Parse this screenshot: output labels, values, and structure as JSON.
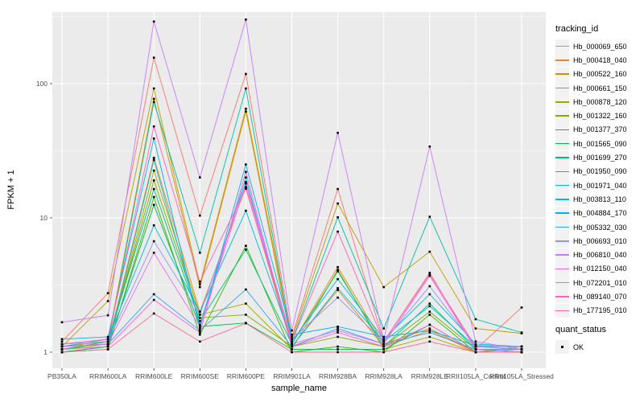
{
  "chart_data": {
    "type": "line",
    "xlabel": "sample_name",
    "ylabel": "FPKM + 1",
    "y_scale": "log10",
    "y_ticks": [
      1,
      10,
      100
    ],
    "y_minor_gridlines": [
      3.1623,
      31.623,
      316.23
    ],
    "ylim": [
      0.76,
      341
    ],
    "panel_bg": "#EBEBEB",
    "grid_color": "#FFFFFF",
    "point_shape": "square",
    "point_color": "#000000",
    "x_categories": [
      "PB350LA",
      "RRIM600LA",
      "RRIM600LE",
      "RRIM600SE",
      "RRIM600PE",
      "RRIM901LA",
      "RRIM928BA",
      "RRIM928LA",
      "RRIM928LE",
      "RRII105LA_Control",
      "RRII105LA_Stressed"
    ],
    "line_legend": {
      "title": "tracking_id"
    },
    "point_legend": {
      "title": "quant_status",
      "label": "OK"
    },
    "series": [
      {
        "name": "Hb_000069_650",
        "color": "#F8766D",
        "values": [
          1.2,
          2.75,
          156,
          10.4,
          118,
          1.3,
          16.4,
          1.2,
          3.9,
          1.05,
          2.15
        ]
      },
      {
        "name": "Hb_000418_040",
        "color": "#EA8331",
        "values": [
          1.05,
          1.15,
          28,
          2.0,
          17,
          1.1,
          2.9,
          1.1,
          1.45,
          1.0,
          1.05
        ]
      },
      {
        "name": "Hb_000522_160",
        "color": "#D89000",
        "values": [
          1.1,
          1.2,
          77,
          3.05,
          62,
          1.15,
          4.3,
          1.15,
          1.5,
          1.0,
          1.1
        ]
      },
      {
        "name": "Hb_000661_150",
        "color": "#C09B00",
        "values": [
          1.1,
          2.4,
          92,
          3.2,
          65,
          1.25,
          12.8,
          3.05,
          5.6,
          1.5,
          1.38
        ]
      },
      {
        "name": "Hb_000878_120",
        "color": "#A3A500",
        "values": [
          1.0,
          1.1,
          22.5,
          1.9,
          2.3,
          1.05,
          4.1,
          1.05,
          1.3,
          1.0,
          1.0
        ]
      },
      {
        "name": "Hb_001322_160",
        "color": "#7CAE00",
        "values": [
          1.05,
          1.15,
          19,
          1.8,
          1.9,
          1.1,
          1.3,
          1.1,
          2.0,
          1.05,
          1.0
        ]
      },
      {
        "name": "Hb_001377_370",
        "color": "#39B600",
        "values": [
          1.0,
          1.05,
          14.3,
          1.35,
          6.2,
          1.0,
          1.1,
          1.0,
          1.9,
          1.0,
          1.0
        ]
      },
      {
        "name": "Hb_001565_090",
        "color": "#00BB4E",
        "values": [
          1.0,
          1.1,
          12.5,
          1.55,
          1.65,
          1.05,
          1.05,
          1.05,
          1.6,
          1.0,
          1.0
        ]
      },
      {
        "name": "Hb_001699_270",
        "color": "#00BF7D",
        "values": [
          1.05,
          1.2,
          16.4,
          1.7,
          5.8,
          1.15,
          4.0,
          1.1,
          2.3,
          1.05,
          1.0
        ]
      },
      {
        "name": "Hb_001950_090",
        "color": "#00C1A3",
        "values": [
          1.1,
          1.15,
          73,
          5.5,
          92,
          1.2,
          10.1,
          1.5,
          10.2,
          1.76,
          1.4
        ]
      },
      {
        "name": "Hb_001971_040",
        "color": "#00BFC4",
        "values": [
          1.05,
          1.1,
          27,
          1.6,
          20,
          1.1,
          3.0,
          1.2,
          2.2,
          1.1,
          1.05
        ]
      },
      {
        "name": "Hb_003813_110",
        "color": "#00BAE0",
        "values": [
          1.1,
          1.25,
          8.8,
          2.0,
          11.3,
          1.2,
          3.5,
          1.25,
          2.7,
          1.15,
          1.1
        ]
      },
      {
        "name": "Hb_004884_170",
        "color": "#00B0F6",
        "values": [
          1.25,
          1.3,
          39,
          1.5,
          25,
          1.35,
          1.55,
          1.3,
          1.45,
          1.12,
          1.1
        ]
      },
      {
        "name": "Hb_005332_030",
        "color": "#35A2FF",
        "values": [
          1.1,
          1.15,
          2.7,
          1.45,
          2.93,
          1.1,
          1.5,
          1.15,
          1.4,
          1.05,
          1.05
        ]
      },
      {
        "name": "Hb_006693_010",
        "color": "#9590FF",
        "values": [
          1.15,
          1.2,
          6.7,
          1.9,
          18.5,
          1.25,
          2.55,
          1.2,
          3.1,
          1.1,
          1.05
        ]
      },
      {
        "name": "Hb_006810_040",
        "color": "#C77CFF",
        "values": [
          1.67,
          1.88,
          290,
          20,
          300,
          1.45,
          43,
          1.25,
          34,
          1.2,
          1.05
        ]
      },
      {
        "name": "Hb_012150_040",
        "color": "#E76BF3",
        "values": [
          1.1,
          1.15,
          5.5,
          1.55,
          18,
          1.15,
          1.45,
          1.15,
          3.7,
          1.05,
          1.0
        ]
      },
      {
        "name": "Hb_072201_010",
        "color": "#FA62DB",
        "values": [
          1.05,
          1.1,
          2.45,
          1.4,
          22,
          1.1,
          1.4,
          1.1,
          1.6,
          1.0,
          1.0
        ]
      },
      {
        "name": "Hb_089140_070",
        "color": "#FF62BC",
        "values": [
          1.15,
          1.25,
          48,
          3.35,
          16.5,
          1.2,
          7.9,
          1.2,
          3.8,
          1.1,
          1.1
        ]
      },
      {
        "name": "Hb_177195_010",
        "color": "#FF6A98",
        "values": [
          1.0,
          1.05,
          1.94,
          1.2,
          1.64,
          1.0,
          1.0,
          1.0,
          1.2,
          1.0,
          1.0
        ]
      }
    ]
  }
}
